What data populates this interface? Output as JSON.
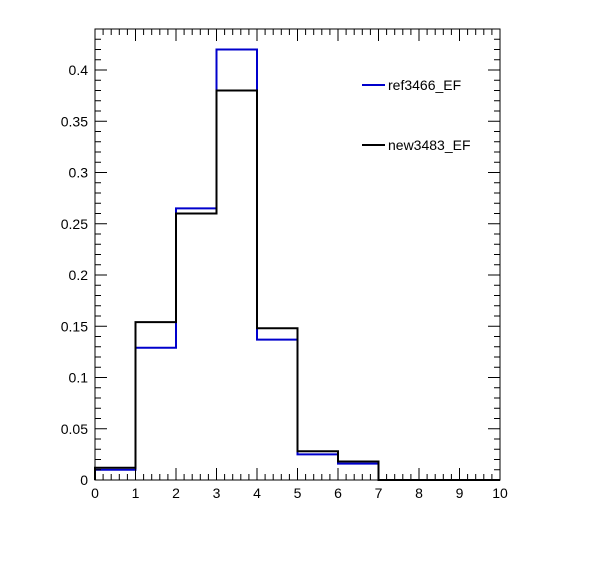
{
  "chart_data": {
    "type": "step-histogram",
    "title": "",
    "xlabel": "",
    "ylabel": "",
    "xlim": [
      0,
      10
    ],
    "ylim": [
      0,
      0.44
    ],
    "bin_edges": [
      0,
      1,
      2,
      3,
      4,
      5,
      6,
      7,
      8,
      9,
      10
    ],
    "x_ticks": [
      "0",
      "1",
      "2",
      "3",
      "4",
      "5",
      "6",
      "7",
      "8",
      "9",
      "10"
    ],
    "y_ticks": [
      {
        "value": 0,
        "label": "0"
      },
      {
        "value": 0.05,
        "label": "0.05"
      },
      {
        "value": 0.1,
        "label": "0.1"
      },
      {
        "value": 0.15,
        "label": "0.15"
      },
      {
        "value": 0.2,
        "label": "0.2"
      },
      {
        "value": 0.25,
        "label": "0.25"
      },
      {
        "value": 0.3,
        "label": "0.3"
      },
      {
        "value": 0.35,
        "label": "0.35"
      },
      {
        "value": 0.4,
        "label": "0.4"
      }
    ],
    "grid": false,
    "legend_position": "top-right",
    "series": [
      {
        "name": "ref3466_EF",
        "color": "#0000cc",
        "values": [
          0.01,
          0.129,
          0.265,
          0.42,
          0.137,
          0.025,
          0.016,
          0.0,
          0.0,
          0.0
        ]
      },
      {
        "name": "new3483_EF",
        "color": "#000000",
        "values": [
          0.012,
          0.154,
          0.26,
          0.38,
          0.148,
          0.028,
          0.018,
          0.0,
          0.0,
          0.0
        ]
      }
    ]
  }
}
